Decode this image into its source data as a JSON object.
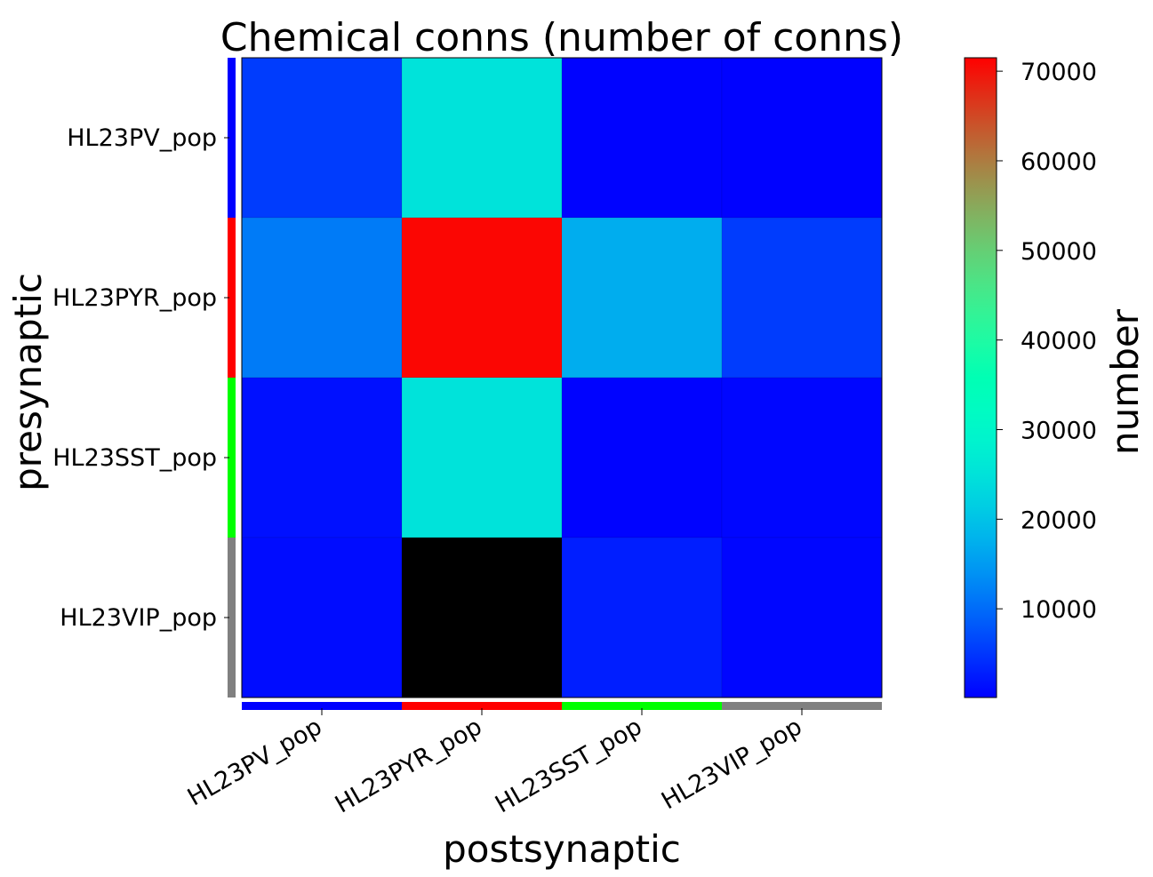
{
  "chart_data": {
    "type": "heatmap",
    "title": "Chemical conns (number of conns)",
    "xlabel": "postsynaptic",
    "ylabel": "presynaptic",
    "x_categories": [
      "HL23PV_pop",
      "HL23PYR_pop",
      "HL23SST_pop",
      "HL23VIP_pop"
    ],
    "y_categories": [
      "HL23PV_pop",
      "HL23PYR_pop",
      "HL23SST_pop",
      "HL23VIP_pop"
    ],
    "category_colors": [
      "#0000ff",
      "#ff0000",
      "#00ff00",
      "#808080"
    ],
    "values": [
      [
        5500,
        25000,
        400,
        300
      ],
      [
        11500,
        71000,
        17000,
        5500
      ],
      [
        1500,
        25000,
        400,
        600
      ],
      [
        1200,
        null,
        2800,
        600
      ]
    ],
    "missing_color": "#000000",
    "colorbar": {
      "label": "number",
      "colormap": "rainbow",
      "vmin": 100,
      "vmax": 71500,
      "ticks": [
        10000,
        20000,
        30000,
        40000,
        50000,
        60000,
        70000
      ],
      "tick_labels": [
        "10000",
        "20000",
        "30000",
        "40000",
        "50000",
        "60000",
        "70000"
      ]
    }
  }
}
